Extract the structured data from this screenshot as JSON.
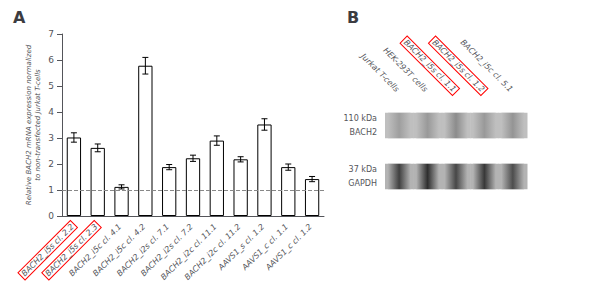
{
  "chart_data": [
    {
      "type": "bar",
      "title": "A",
      "categories": [
        "BACH2_i5s cl. 2.2",
        "BACH2_i5s cl. 2.3",
        "BACH2_i5c cl. 4.1",
        "BACH2_i5c cl. 4.2",
        "BACH2_i2s cl. 7.1",
        "BACH2_i2s cl. 7.2",
        "BACH2_i2c cl. 11.1",
        "BACH2_i2c cl. 11.2",
        "AAVS1_s cl. 1.2",
        "AAVS1_c cl. 1.1",
        "AAVS1_c cl. 1.2"
      ],
      "values": [
        3.02,
        2.62,
        1.12,
        5.78,
        1.88,
        2.22,
        2.9,
        2.18,
        3.52,
        1.88,
        1.42
      ],
      "errors": [
        0.18,
        0.15,
        0.08,
        0.32,
        0.1,
        0.12,
        0.18,
        0.1,
        0.22,
        0.12,
        0.1
      ],
      "color": "#ffffff",
      "edge_color": "#000000",
      "ylabel": "Relative BACH2 mRNA expression normalized\nto non-transfected Jurkat T-cells",
      "ylim": [
        0,
        7
      ],
      "yticks": [
        0,
        1,
        2,
        3,
        4,
        5,
        6,
        7
      ],
      "grid": false,
      "reference_line": 1.0,
      "line_style": "dashed",
      "highlighted": [
        0,
        1
      ],
      "highlight_color": "#ff0000"
    },
    {
      "type": "blot",
      "title": "B",
      "categories": [
        "Jurkat T-cells",
        "HEK-293T cells",
        "BACH2_i5s cl. 1.1",
        "BACH2_i5s cl. 1.2",
        "BACH2_i5c cl. 5.1"
      ],
      "rows": [
        {
          "name": "BACH2",
          "size_label": "110 kDa",
          "values": [
            0.62,
            0.6,
            0.55,
            0.6,
            0.58
          ],
          "background": 0.75
        },
        {
          "name": "GAPDH",
          "size_label": "37 kDa",
          "values": [
            0.25,
            0.18,
            0.28,
            0.22,
            0.3
          ],
          "background": 0.7
        }
      ],
      "color_range": [
        0,
        1
      ],
      "highlighted": [
        2,
        3
      ],
      "highlight_color": "#ff0000"
    }
  ]
}
